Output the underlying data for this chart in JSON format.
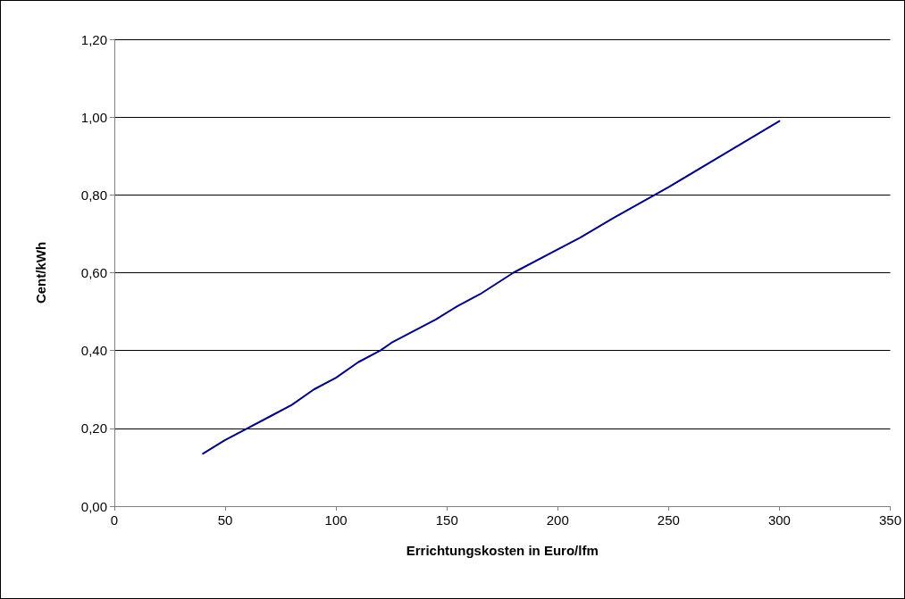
{
  "chart_data": {
    "type": "line",
    "xlabel": "Errichtungskosten in Euro/lfm",
    "ylabel": "Cent/kWh",
    "x": [
      40,
      50,
      60,
      70,
      80,
      90,
      100,
      110,
      120,
      125,
      135,
      145,
      155,
      165,
      180,
      200,
      210,
      225,
      250,
      275,
      300
    ],
    "series": [
      {
        "color": "#000080",
        "values": [
          0.135,
          0.17,
          0.2,
          0.23,
          0.26,
          0.3,
          0.33,
          0.37,
          0.4,
          0.42,
          0.45,
          0.48,
          0.515,
          0.545,
          0.6,
          0.66,
          0.69,
          0.74,
          0.82,
          0.905,
          0.99
        ]
      }
    ],
    "xlim": [
      0,
      350
    ],
    "xticks": [
      0,
      50,
      100,
      150,
      200,
      250,
      300,
      350
    ],
    "ylim": [
      0,
      1.2
    ],
    "yticks": [
      {
        "value": 0,
        "label": "0,00"
      },
      {
        "value": 0.2,
        "label": "0,20"
      },
      {
        "value": 0.4,
        "label": "0,40"
      },
      {
        "value": 0.6,
        "label": "0,60"
      },
      {
        "value": 0.8,
        "label": "0,80"
      },
      {
        "value": 1,
        "label": "1,00"
      },
      {
        "value": 1.2,
        "label": "1,20"
      }
    ],
    "grid": "y",
    "marker": "none",
    "line_style": "solid"
  }
}
